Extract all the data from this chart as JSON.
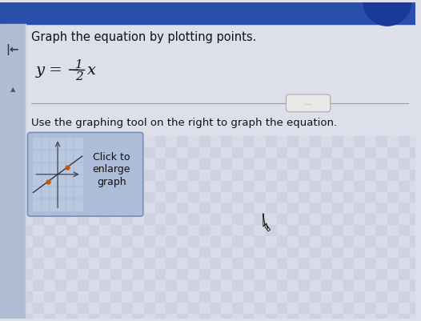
{
  "bg_color_top": "#2a4faa",
  "bg_color_main": "#dde0ea",
  "bg_color_checkerboard1": "#d8dce8",
  "bg_color_checkerboard2": "#c8ccdc",
  "text_color": "#111111",
  "header_text": "Graph the equation by plotting points.",
  "divider_color": "#999999",
  "pill_color": "#e8e8e8",
  "pill_border": "#aaaaaa",
  "pill_text": "...",
  "instruction_text": "Use the graphing tool on the right to graph the equation.",
  "button_bg": "#adbcd8",
  "button_border": "#7a8fb5",
  "button_text_line1": "Click to",
  "button_text_line2": "enlarge",
  "button_text_line3": "graph",
  "graph_bg": "#b8c8e0",
  "graph_axes_color": "#444455",
  "graph_grid_color": "#8899bb",
  "graph_line_color": "#333344",
  "graph_dot_color": "#cc5500",
  "sidebar_color": "#8899bb",
  "back_arrow": "↤",
  "triangle_marker": "▲",
  "cursor_color": "#222222"
}
